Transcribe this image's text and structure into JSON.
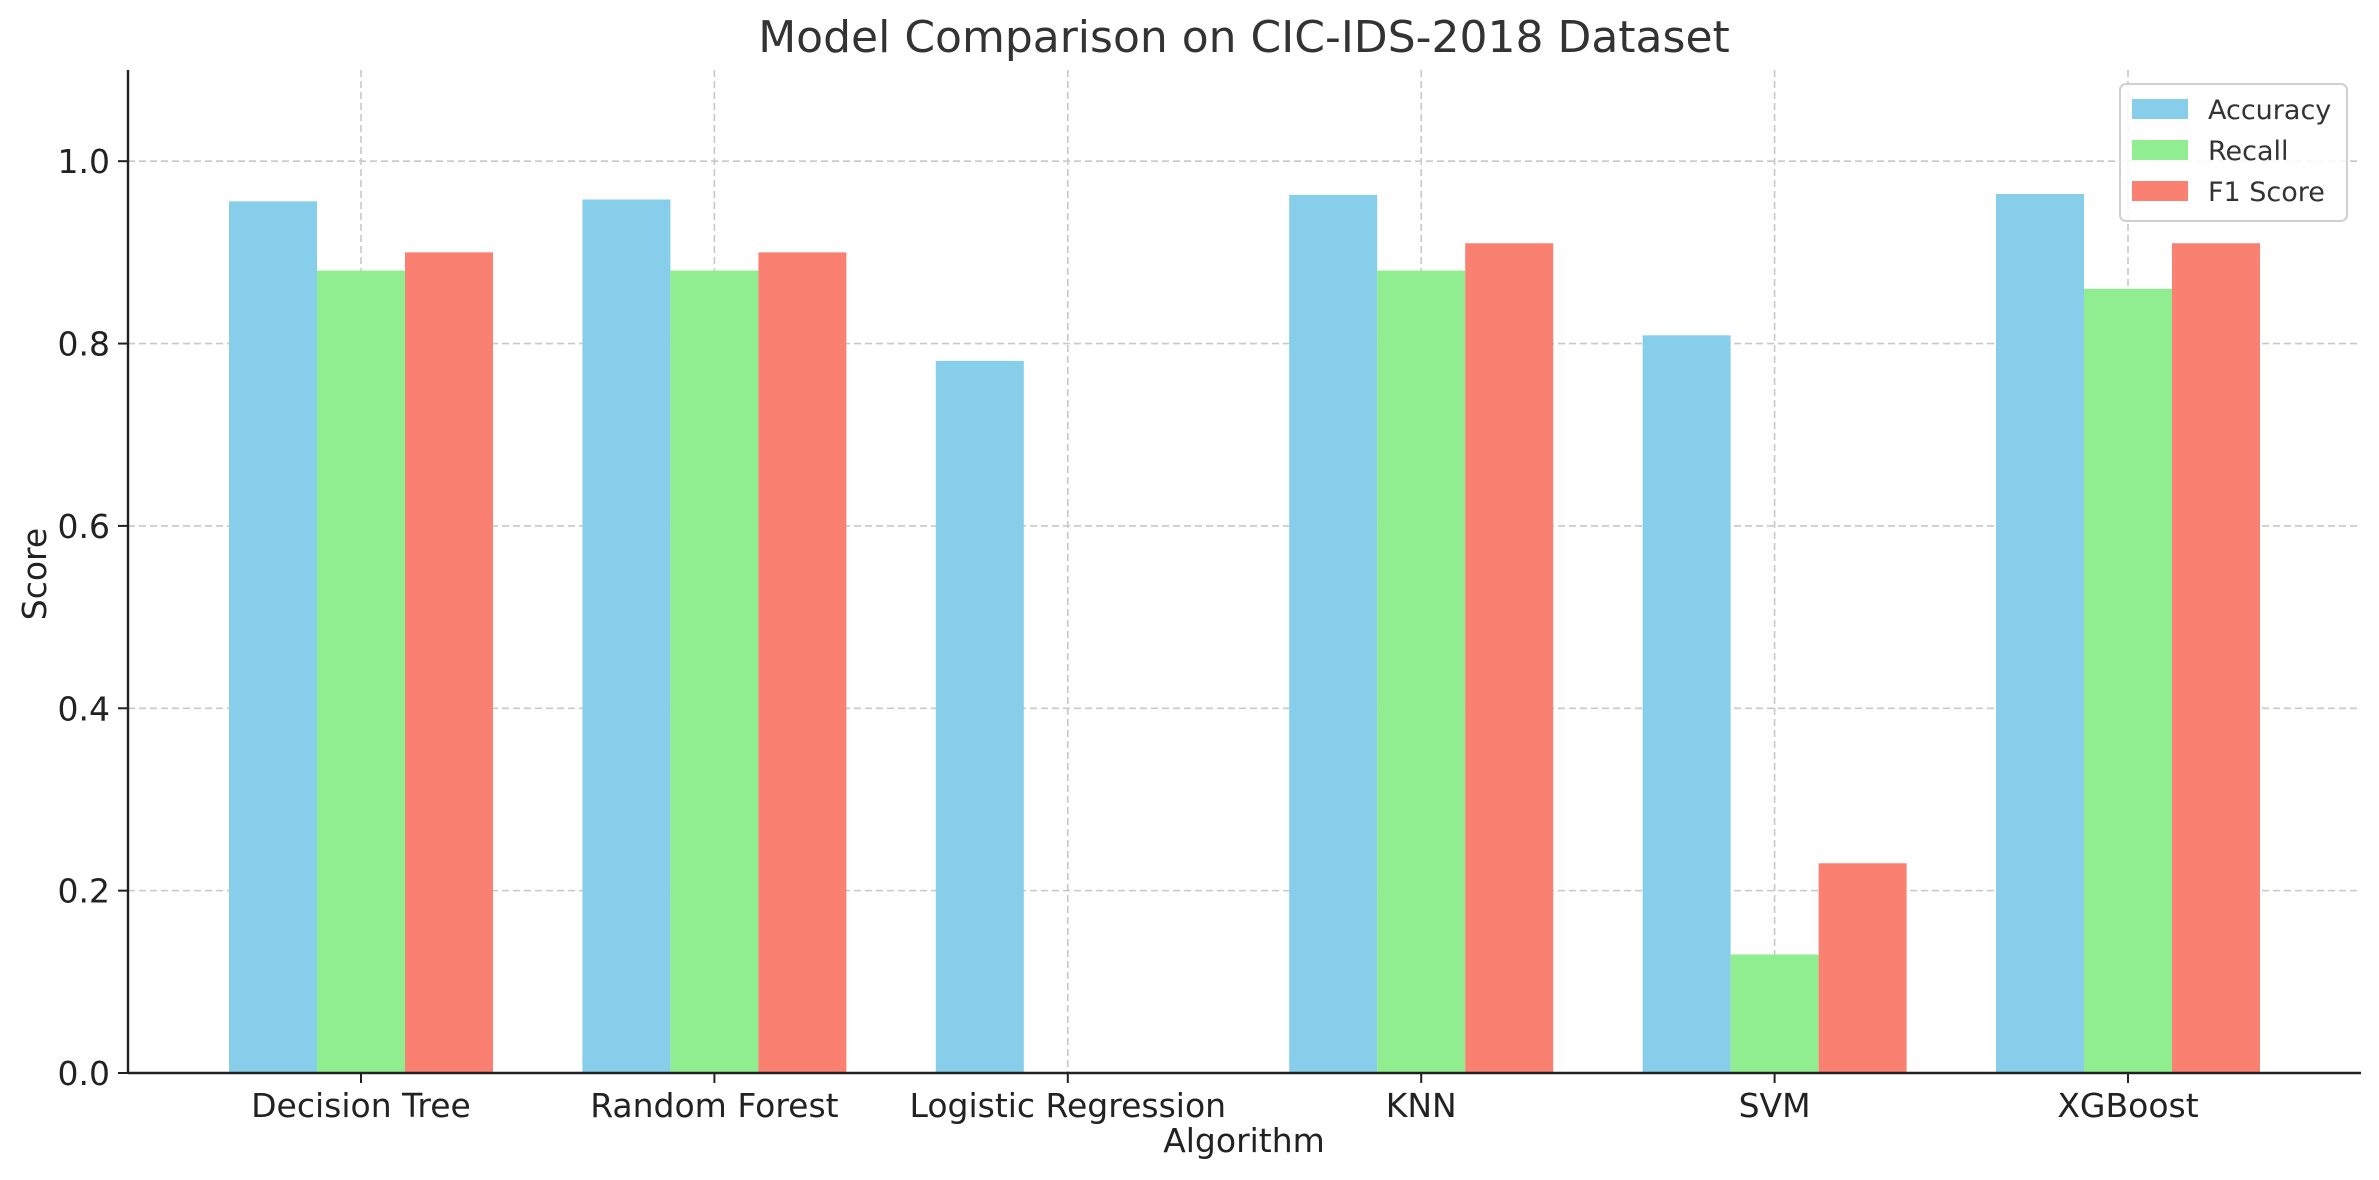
{
  "chart_data": {
    "type": "bar",
    "title": "Model Comparison on CIC-IDS-2018 Dataset",
    "xlabel": "Algorithm",
    "ylabel": "Score",
    "categories": [
      "Decision Tree",
      "Random Forest",
      "Logistic Regression",
      "KNN",
      "SVM",
      "XGBoost"
    ],
    "series": [
      {
        "name": "Accuracy",
        "color": "#87CEEB",
        "values": [
          0.956,
          0.958,
          0.781,
          0.963,
          0.809,
          0.964
        ]
      },
      {
        "name": "Recall",
        "color": "#90EE90",
        "values": [
          0.88,
          0.88,
          0.0,
          0.88,
          0.13,
          0.86
        ]
      },
      {
        "name": "F1 Score",
        "color": "#FA8072",
        "values": [
          0.9,
          0.9,
          0.0,
          0.91,
          0.23,
          0.91
        ]
      }
    ],
    "ylim": [
      0,
      1.1
    ],
    "yticks": [
      "0.0",
      "0.2",
      "0.4",
      "0.6",
      "0.8",
      "1.0"
    ],
    "grid": true,
    "legend": "top-right"
  }
}
